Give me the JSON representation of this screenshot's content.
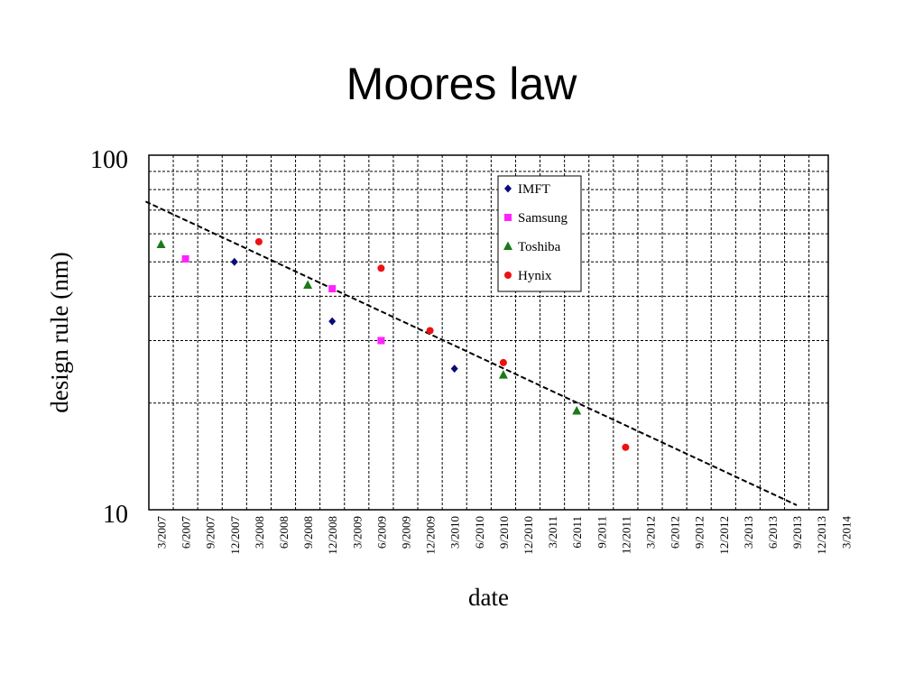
{
  "title": "Moores law",
  "chart_data": {
    "type": "scatter",
    "title": "Moores law",
    "xlabel": "date",
    "ylabel": "design rule (nm)",
    "y_scale": "log",
    "ylim": [
      10,
      100
    ],
    "y_tick_labels": [
      "100",
      "10"
    ],
    "categories": [
      "3/2007",
      "6/2007",
      "9/2007",
      "12/2007",
      "3/2008",
      "6/2008",
      "9/2008",
      "12/2008",
      "3/2009",
      "6/2009",
      "9/2009",
      "12/2009",
      "3/2010",
      "6/2010",
      "9/2010",
      "12/2010",
      "3/2011",
      "6/2011",
      "9/2011",
      "12/2011",
      "3/2012",
      "6/2012",
      "9/2012",
      "12/2012",
      "3/2013",
      "6/2013",
      "9/2013",
      "12/2013",
      "3/2014"
    ],
    "grid": true,
    "legend": "top-center",
    "series": [
      {
        "name": "IMFT",
        "marker": "diamond",
        "color": "#0a0a7a",
        "points": [
          {
            "x": "12/2007",
            "y": 50
          },
          {
            "x": "12/2008",
            "y": 34
          },
          {
            "x": "3/2010",
            "y": 25
          }
        ]
      },
      {
        "name": "Samsung",
        "marker": "square",
        "color": "#ff22ff",
        "points": [
          {
            "x": "6/2007",
            "y": 51
          },
          {
            "x": "12/2008",
            "y": 42
          },
          {
            "x": "6/2009",
            "y": 30
          }
        ]
      },
      {
        "name": "Toshiba",
        "marker": "triangle",
        "color": "#1a7a1a",
        "points": [
          {
            "x": "3/2007",
            "y": 56
          },
          {
            "x": "9/2008",
            "y": 43
          },
          {
            "x": "9/2010",
            "y": 24
          },
          {
            "x": "6/2011",
            "y": 19
          }
        ]
      },
      {
        "name": "Hynix",
        "marker": "circle",
        "color": "#ee1111",
        "points": [
          {
            "x": "3/2008",
            "y": 57
          },
          {
            "x": "6/2009",
            "y": 48
          },
          {
            "x": "12/2009",
            "y": 32
          },
          {
            "x": "9/2010",
            "y": 26
          },
          {
            "x": "12/2011",
            "y": 15
          }
        ]
      }
    ],
    "trendline": {
      "style": "dashed",
      "color": "#000000",
      "from": {
        "x": "12/2006",
        "y": 74
      },
      "to": {
        "x": "9/2013",
        "y": 10.3
      }
    }
  }
}
